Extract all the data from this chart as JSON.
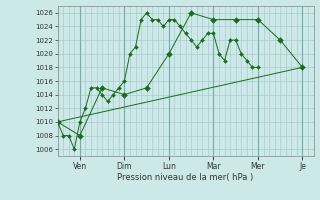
{
  "xlabel": "Pression niveau de la mer( hPa )",
  "ylim": [
    1005,
    1027
  ],
  "yticks": [
    1006,
    1008,
    1010,
    1012,
    1014,
    1016,
    1018,
    1020,
    1022,
    1024,
    1026
  ],
  "background_color": "#cce8e8",
  "grid_color": "#aacaca",
  "line_color": "#1a6b1a",
  "day_labels": [
    "Ven",
    "Dim",
    "Lun",
    "Mar",
    "Mer",
    "Je"
  ],
  "day_positions": [
    2,
    6,
    10,
    14,
    18,
    22
  ],
  "xlim": [
    0,
    23
  ],
  "series1_x": [
    0,
    0.5,
    1.0,
    1.5,
    2.0,
    2.5,
    3.0,
    3.5,
    4.0,
    4.5,
    5.0,
    5.5,
    6.0,
    6.5,
    7.0,
    7.5,
    8.0,
    8.5,
    9.0,
    9.5,
    10.0,
    10.5,
    11.0,
    11.5,
    12.0,
    12.5,
    13.0,
    13.5,
    14.0,
    14.5,
    15.0,
    15.5,
    16.0,
    16.5,
    17.0,
    17.5,
    18.0
  ],
  "series1_y": [
    1010,
    1008,
    1008,
    1006,
    1010,
    1012,
    1015,
    1015,
    1014,
    1013,
    1014,
    1015,
    1016,
    1020,
    1021,
    1025,
    1026,
    1025,
    1025,
    1024,
    1025,
    1025,
    1024,
    1023,
    1022,
    1021,
    1022,
    1023,
    1023,
    1020,
    1019,
    1022,
    1022,
    1020,
    1019,
    1018,
    1018
  ],
  "series2_x": [
    0,
    2,
    4,
    6,
    8,
    10,
    12,
    14,
    16,
    18,
    20,
    22
  ],
  "series2_y": [
    1010,
    1008,
    1015,
    1014,
    1015,
    1020,
    1026,
    1025,
    1025,
    1025,
    1022,
    1018
  ],
  "series3_x": [
    0,
    22
  ],
  "series3_y": [
    1010,
    1018
  ]
}
